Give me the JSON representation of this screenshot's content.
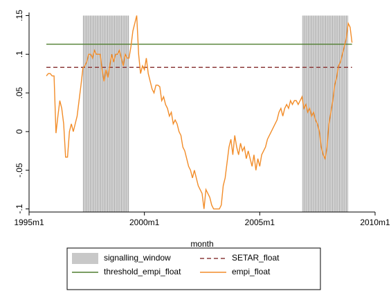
{
  "chart_data": {
    "type": "line",
    "xlabel": "month",
    "xlim": [
      420,
      600
    ],
    "xticks": [
      {
        "value": 420,
        "label": "1995m1"
      },
      {
        "value": 480,
        "label": "2000m1"
      },
      {
        "value": 540,
        "label": "2005m1"
      },
      {
        "value": 600,
        "label": "2010m1"
      }
    ],
    "ylim": [
      -0.104,
      0.154
    ],
    "yticks": [
      {
        "value": -0.1,
        "label": "-.1"
      },
      {
        "value": -0.05,
        "label": "-.05"
      },
      0,
      {
        "value": 0.05,
        "label": ".05"
      },
      {
        "value": 0.1,
        "label": ".1"
      },
      {
        "value": 0.15,
        "label": ".15"
      }
    ],
    "windows": {
      "name": "signalling_window",
      "color": "#c8c8c8",
      "height": 0.15,
      "ranges": [
        [
          448,
          472
        ],
        [
          562,
          586
        ]
      ]
    },
    "x": [
      429,
      430,
      431,
      432,
      433,
      434,
      435,
      436,
      437,
      438,
      439,
      440,
      441,
      442,
      443,
      444,
      445,
      446,
      447,
      448,
      449,
      450,
      451,
      452,
      453,
      454,
      455,
      456,
      457,
      458,
      459,
      460,
      461,
      462,
      463,
      464,
      465,
      466,
      467,
      468,
      469,
      470,
      471,
      472,
      473,
      474,
      475,
      476,
      477,
      478,
      479,
      480,
      481,
      482,
      483,
      484,
      485,
      486,
      487,
      488,
      489,
      490,
      491,
      492,
      493,
      494,
      495,
      496,
      497,
      498,
      499,
      500,
      501,
      502,
      503,
      504,
      505,
      506,
      507,
      508,
      509,
      510,
      511,
      512,
      513,
      514,
      515,
      516,
      517,
      518,
      519,
      520,
      521,
      522,
      523,
      524,
      525,
      526,
      527,
      528,
      529,
      530,
      531,
      532,
      533,
      534,
      535,
      536,
      537,
      538,
      539,
      540,
      541,
      542,
      543,
      544,
      545,
      546,
      547,
      548,
      549,
      550,
      551,
      552,
      553,
      554,
      555,
      556,
      557,
      558,
      559,
      560,
      561,
      562,
      563,
      564,
      565,
      566,
      567,
      568,
      569,
      570,
      571,
      572,
      573,
      574,
      575,
      576,
      577,
      578,
      579,
      580,
      581,
      582,
      583,
      584,
      585,
      586,
      587,
      588
    ],
    "series": [
      {
        "name": "empi_float",
        "color": "#f28c28",
        "values": [
          0.072,
          0.075,
          0.075,
          0.072,
          0.072,
          -0.002,
          0.02,
          0.04,
          0.03,
          0.01,
          -0.033,
          -0.033,
          0,
          0.01,
          0,
          0.01,
          0.02,
          0.04,
          0.06,
          0.082,
          0.085,
          0.09,
          0.1,
          0.1,
          0.095,
          0.105,
          0.1,
          0.1,
          0.1,
          0.08,
          0.065,
          0.08,
          0.07,
          0.085,
          0.1,
          0.09,
          0.1,
          0.1,
          0.105,
          0.095,
          0.085,
          0.1,
          0.095,
          0.095,
          0.11,
          0.13,
          0.14,
          0.15,
          0.1,
          0.075,
          0.085,
          0.08,
          0.095,
          0.075,
          0.065,
          0.055,
          0.05,
          0.06,
          0.06,
          0.058,
          0.04,
          0.045,
          0.035,
          0.03,
          0.02,
          0.025,
          0.01,
          0.015,
          0.01,
          0,
          -0.005,
          -0.02,
          -0.025,
          -0.035,
          -0.045,
          -0.05,
          -0.06,
          -0.05,
          -0.06,
          -0.07,
          -0.075,
          -0.08,
          -0.1,
          -0.075,
          -0.08,
          -0.085,
          -0.095,
          -0.1,
          -0.1,
          -0.1,
          -0.1,
          -0.095,
          -0.07,
          -0.06,
          -0.04,
          -0.02,
          -0.01,
          -0.03,
          -0.005,
          -0.02,
          -0.03,
          -0.015,
          -0.025,
          -0.02,
          -0.035,
          -0.025,
          -0.035,
          -0.045,
          -0.03,
          -0.05,
          -0.035,
          -0.045,
          -0.03,
          -0.025,
          -0.02,
          -0.01,
          -0.005,
          0,
          0.005,
          0.01,
          0.015,
          0.025,
          0.03,
          0.02,
          0.03,
          0.035,
          0.03,
          0.04,
          0.035,
          0.04,
          0.04,
          0.035,
          0.04,
          0.045,
          0.03,
          0.035,
          0.025,
          0.03,
          0.02,
          0.025,
          0.015,
          0.01,
          0,
          -0.02,
          -0.03,
          -0.035,
          -0.02,
          0.01,
          0.025,
          0.04,
          0.06,
          0.07,
          0.085,
          0.09,
          0.1,
          0.11,
          0.12,
          0.14,
          0.135,
          0.115
        ]
      },
      {
        "name": "threshold_empi_float",
        "color": "#4e7d2e",
        "value": 0.113
      },
      {
        "name": "SETAR_float",
        "color": "#8c3b3b",
        "dashed": true,
        "value": 0.083
      }
    ]
  }
}
